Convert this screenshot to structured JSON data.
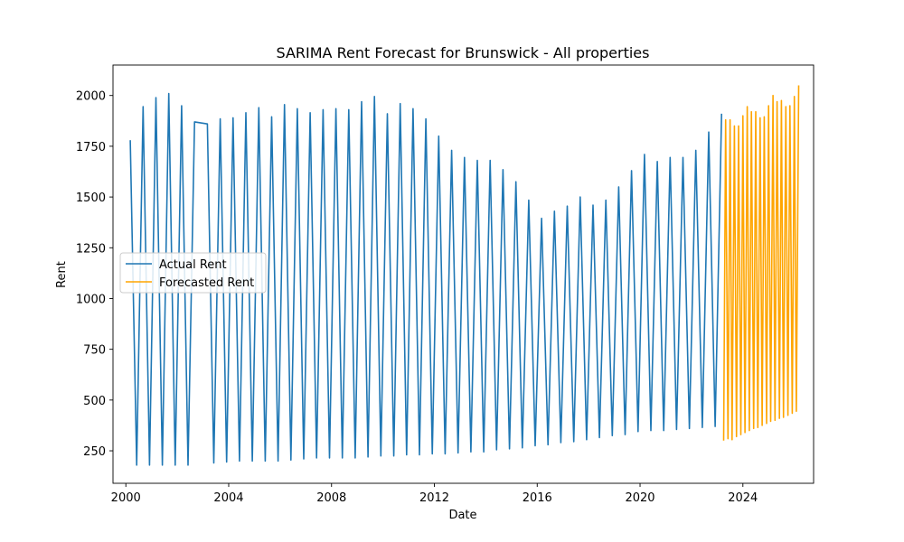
{
  "chart_data": {
    "type": "line",
    "title": "SARIMA Rent Forecast for Brunswick - All properties",
    "xlabel": "Date",
    "ylabel": "Rent",
    "xlim": [
      1999.5,
      2026.75
    ],
    "ylim": [
      90,
      2150
    ],
    "xticks": [
      2000,
      2004,
      2008,
      2012,
      2016,
      2020,
      2024
    ],
    "yticks": [
      250,
      500,
      750,
      1000,
      1250,
      1500,
      1750,
      2000
    ],
    "grid": false,
    "legend_position": "center-left",
    "series": [
      {
        "name": "Actual Rent",
        "color": "#1f77b4",
        "x": [
          2000.17,
          2000.42,
          2000.67,
          2000.92,
          2001.17,
          2001.42,
          2001.67,
          2001.92,
          2002.17,
          2002.42,
          2002.67,
          2003.17,
          2003.42,
          2003.67,
          2003.92,
          2004.17,
          2004.42,
          2004.67,
          2004.92,
          2005.17,
          2005.42,
          2005.67,
          2005.92,
          2006.17,
          2006.42,
          2006.67,
          2006.92,
          2007.17,
          2007.42,
          2007.67,
          2007.92,
          2008.17,
          2008.42,
          2008.67,
          2008.92,
          2009.17,
          2009.42,
          2009.67,
          2009.92,
          2010.17,
          2010.42,
          2010.67,
          2010.92,
          2011.17,
          2011.42,
          2011.67,
          2011.92,
          2012.17,
          2012.42,
          2012.67,
          2012.92,
          2013.17,
          2013.42,
          2013.67,
          2013.92,
          2014.17,
          2014.42,
          2014.67,
          2014.92,
          2015.17,
          2015.42,
          2015.67,
          2015.92,
          2016.17,
          2016.42,
          2016.67,
          2016.92,
          2017.17,
          2017.42,
          2017.67,
          2017.92,
          2018.17,
          2018.42,
          2018.67,
          2018.92,
          2019.17,
          2019.42,
          2019.67,
          2019.92,
          2020.17,
          2020.42,
          2020.67,
          2020.92,
          2021.17,
          2021.42,
          2021.67,
          2021.92,
          2022.17,
          2022.42,
          2022.67,
          2022.92,
          2023.17
        ],
        "y": [
          1780,
          180,
          1945,
          180,
          1990,
          180,
          2010,
          180,
          1950,
          180,
          1870,
          1860,
          190,
          1885,
          195,
          1890,
          200,
          1915,
          200,
          1940,
          200,
          1895,
          200,
          1955,
          205,
          1935,
          210,
          1915,
          215,
          1930,
          215,
          1935,
          215,
          1930,
          215,
          1970,
          220,
          1995,
          225,
          1910,
          225,
          1960,
          230,
          1935,
          230,
          1885,
          235,
          1800,
          235,
          1730,
          240,
          1695,
          245,
          1680,
          245,
          1680,
          255,
          1635,
          260,
          1575,
          265,
          1485,
          275,
          1395,
          280,
          1430,
          290,
          1455,
          295,
          1500,
          305,
          1460,
          315,
          1485,
          325,
          1550,
          330,
          1630,
          345,
          1710,
          350,
          1675,
          350,
          1695,
          355,
          1695,
          360,
          1730,
          365,
          1820,
          370,
          1910
        ]
      },
      {
        "name": "Forecasted Rent",
        "color": "#ffa500",
        "x": [
          2023.25,
          2023.33,
          2023.42,
          2023.5,
          2023.58,
          2023.67,
          2023.75,
          2023.83,
          2023.92,
          2024.0,
          2024.08,
          2024.17,
          2024.25,
          2024.33,
          2024.42,
          2024.5,
          2024.58,
          2024.67,
          2024.75,
          2024.83,
          2024.92,
          2025.0,
          2025.08,
          2025.17,
          2025.25,
          2025.33,
          2025.42,
          2025.5,
          2025.58,
          2025.67,
          2025.75,
          2025.83,
          2025.92,
          2026.0,
          2026.08,
          2026.17
        ],
        "y": [
          300,
          1880,
          310,
          1880,
          305,
          1850,
          320,
          1850,
          330,
          1900,
          340,
          1945,
          350,
          1920,
          360,
          1920,
          365,
          1890,
          375,
          1895,
          385,
          1950,
          395,
          2000,
          400,
          1970,
          410,
          1975,
          415,
          1945,
          425,
          1950,
          435,
          1995,
          445,
          2050
        ]
      }
    ]
  }
}
